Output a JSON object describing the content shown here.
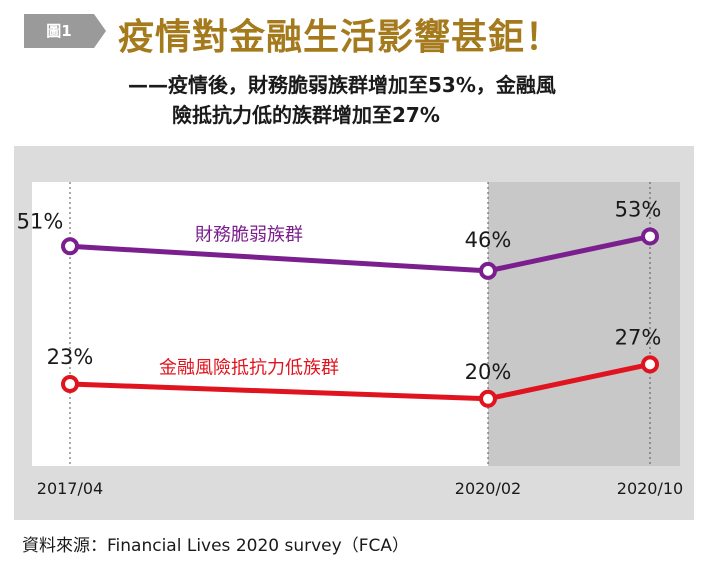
{
  "header": {
    "figure_tag": "圖1",
    "title": "疫情對金融生活影響甚鉅！",
    "subtitle_line1": "——疫情後，財務脆弱族群增加至53%，金融風",
    "subtitle_line2": "險抵抗力低的族群增加至27%"
  },
  "chart_data": {
    "type": "line",
    "categories": [
      "2017/04",
      "2020/02",
      "2020/10"
    ],
    "series": [
      {
        "name": "財務脆弱族群",
        "values": [
          51,
          46,
          53
        ],
        "labels": [
          "51%",
          "46%",
          "53%"
        ],
        "color": "#7b1f8f"
      },
      {
        "name": "金融風險抵抗力低族群",
        "values": [
          23,
          20,
          27
        ],
        "labels": [
          "23%",
          "20%",
          "27%"
        ],
        "color": "#e0141e"
      }
    ],
    "title": "",
    "xlabel": "",
    "ylabel": "",
    "ylim": [
      10,
      60
    ],
    "grid": false,
    "shaded_period": [
      "2020/02",
      "2020/10"
    ]
  },
  "footer": {
    "source": "資料來源：Financial Lives 2020 survey（FCA）"
  },
  "colors": {
    "title": "#a57a1c",
    "tag_bg": "#9a9a9a",
    "panel_bg": "#dcdcdc",
    "shaded_bg": "#c8c8c8"
  }
}
